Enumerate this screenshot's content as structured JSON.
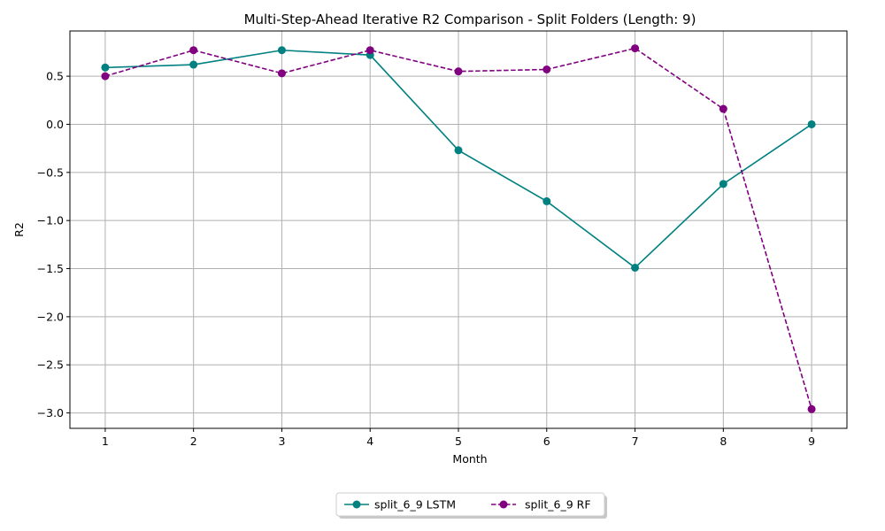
{
  "chart_data": {
    "type": "line",
    "title": "Multi-Step-Ahead Iterative R2 Comparison - Split Folders (Length: 9)",
    "xlabel": "Month",
    "ylabel": "R2",
    "x": [
      1,
      2,
      3,
      4,
      5,
      6,
      7,
      8,
      9
    ],
    "xlim": [
      0.6,
      9.4
    ],
    "ylim": [
      -3.16,
      0.97
    ],
    "xticks": [
      1,
      2,
      3,
      4,
      5,
      6,
      7,
      8,
      9
    ],
    "yticks": [
      0.5,
      0.0,
      -0.5,
      -1.0,
      -1.5,
      -2.0,
      -2.5,
      -3.0
    ],
    "ytick_labels": [
      "0.5",
      "0.0",
      "−0.5",
      "−1.0",
      "−1.5",
      "−2.0",
      "−2.5",
      "−3.0"
    ],
    "grid": true,
    "legend_placement": "bottom-center",
    "series": [
      {
        "name": "split_6_9 LSTM",
        "color": "#008080",
        "linestyle": "solid",
        "marker": "circle",
        "values": [
          0.59,
          0.62,
          0.77,
          0.72,
          -0.27,
          -0.8,
          -1.49,
          -0.62,
          0.0
        ]
      },
      {
        "name": "split_6_9 RF",
        "color": "#800080",
        "linestyle": "dashed",
        "marker": "circle",
        "values": [
          0.5,
          0.77,
          0.53,
          0.77,
          0.55,
          0.57,
          0.79,
          0.16,
          -2.96
        ]
      }
    ]
  }
}
